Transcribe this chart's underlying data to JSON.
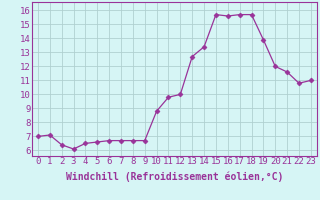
{
  "x": [
    0,
    1,
    2,
    3,
    4,
    5,
    6,
    7,
    8,
    9,
    10,
    11,
    12,
    13,
    14,
    15,
    16,
    17,
    18,
    19,
    20,
    21,
    22,
    23
  ],
  "y": [
    7.0,
    7.1,
    6.4,
    6.1,
    6.5,
    6.6,
    6.7,
    6.7,
    6.7,
    6.7,
    8.8,
    9.8,
    10.0,
    12.7,
    13.4,
    15.7,
    15.6,
    15.7,
    15.7,
    13.9,
    12.0,
    11.6,
    10.8,
    11.0
  ],
  "line_color": "#993399",
  "marker": "D",
  "marker_size": 2.5,
  "bg_color": "#d6f5f5",
  "grid_color": "#b0d0d0",
  "xlabel": "Windchill (Refroidissement éolien,°C)",
  "xlabel_fontsize": 7,
  "tick_fontsize": 6.5,
  "ylim": [
    5.6,
    16.6
  ],
  "xlim": [
    -0.5,
    23.5
  ],
  "yticks": [
    6,
    7,
    8,
    9,
    10,
    11,
    12,
    13,
    14,
    15,
    16
  ],
  "xticks": [
    0,
    1,
    2,
    3,
    4,
    5,
    6,
    7,
    8,
    9,
    10,
    11,
    12,
    13,
    14,
    15,
    16,
    17,
    18,
    19,
    20,
    21,
    22,
    23
  ]
}
